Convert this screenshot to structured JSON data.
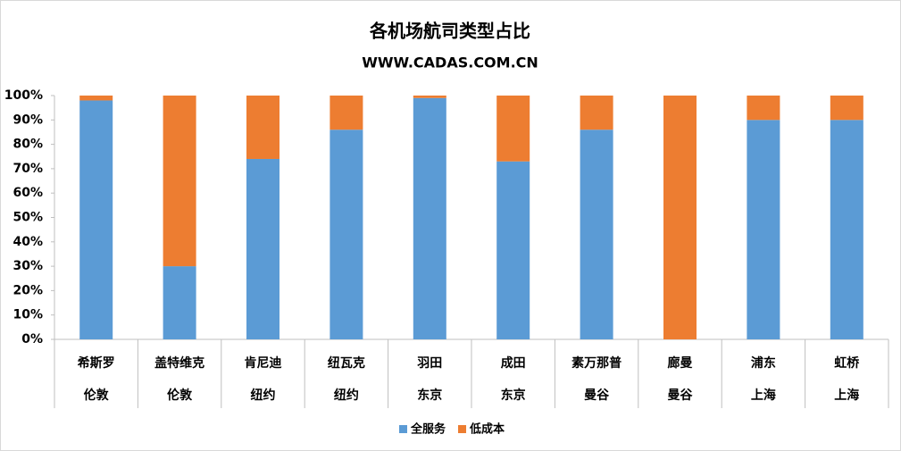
{
  "chart_data": {
    "type": "stacked_bar_percent",
    "title": "各机场航司类型占比",
    "subtitle": "WWW.CADAS.COM.CN",
    "categories": [
      "希斯罗",
      "盖特维克",
      "肯尼迪",
      "纽瓦克",
      "羽田",
      "成田",
      "素万那普",
      "廊曼",
      "浦东",
      "虹桥"
    ],
    "cities": [
      "伦敦",
      "伦敦",
      "纽约",
      "纽约",
      "东京",
      "东京",
      "曼谷",
      "曼谷",
      "上海",
      "上海"
    ],
    "series": [
      {
        "name": "全服务",
        "color": "#5b9bd5",
        "values": [
          98,
          30,
          74,
          86,
          99,
          73,
          86,
          0,
          90,
          90
        ]
      },
      {
        "name": "低成本",
        "color": "#ed7d31",
        "values": [
          2,
          70,
          26,
          14,
          1,
          27,
          14,
          100,
          10,
          10
        ]
      }
    ],
    "ylim": [
      0,
      100
    ],
    "yticks": [
      {
        "value": 0,
        "label": "0%"
      },
      {
        "value": 10,
        "label": "10%"
      },
      {
        "value": 20,
        "label": "20%"
      },
      {
        "value": 30,
        "label": "30%"
      },
      {
        "value": 40,
        "label": "40%"
      },
      {
        "value": 50,
        "label": "50%"
      },
      {
        "value": 60,
        "label": "60%"
      },
      {
        "value": 70,
        "label": "70%"
      },
      {
        "value": 80,
        "label": "80%"
      },
      {
        "value": 90,
        "label": "90%"
      },
      {
        "value": 100,
        "label": "100%"
      }
    ],
    "legend": "bottom"
  }
}
